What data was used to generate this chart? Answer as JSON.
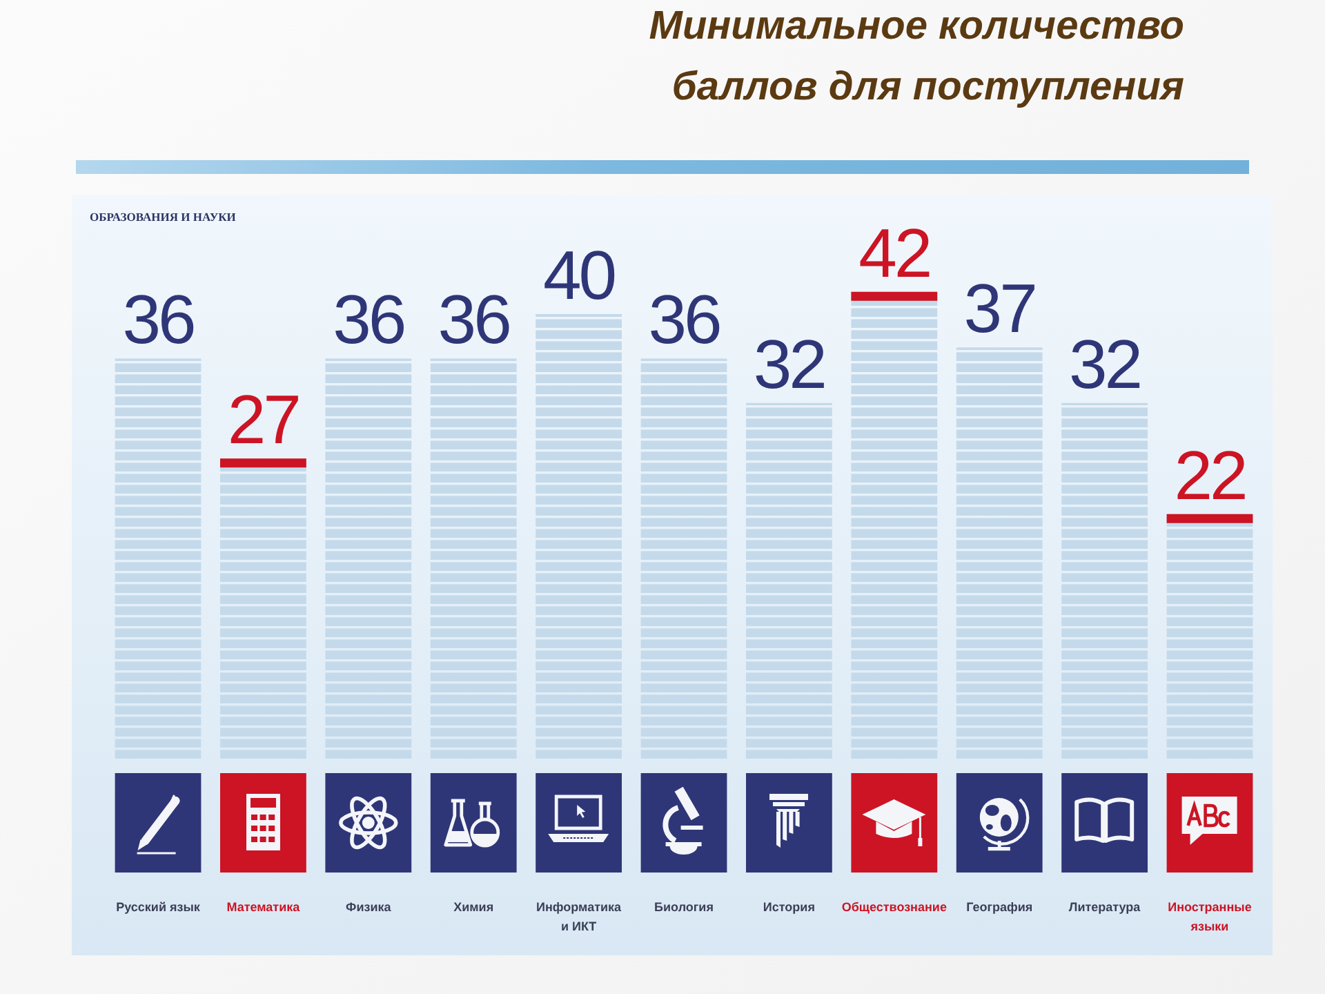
{
  "chart_data": {
    "type": "bar",
    "title": "Минимальное количество\nбаллов для поступления",
    "subtitle": "ОБРАЗОВАНИЯ И НАУКИ",
    "categories": [
      "Русский язык",
      "Математика",
      "Физика",
      "Химия",
      "Информатика и ИКТ",
      "Биология",
      "История",
      "Обществознание",
      "География",
      "Литература",
      "Иностранные языки"
    ],
    "series": [
      {
        "color": "#c4daeb",
        "values": [
          36,
          null,
          36,
          36,
          40,
          36,
          32,
          null,
          37,
          32,
          null
        ]
      },
      {
        "color": "#c4daeb",
        "values": [
          null,
          27,
          null,
          null,
          null,
          null,
          null,
          42,
          null,
          null,
          22
        ]
      }
    ],
    "stacked": true,
    "data_labels": true
  }
}
